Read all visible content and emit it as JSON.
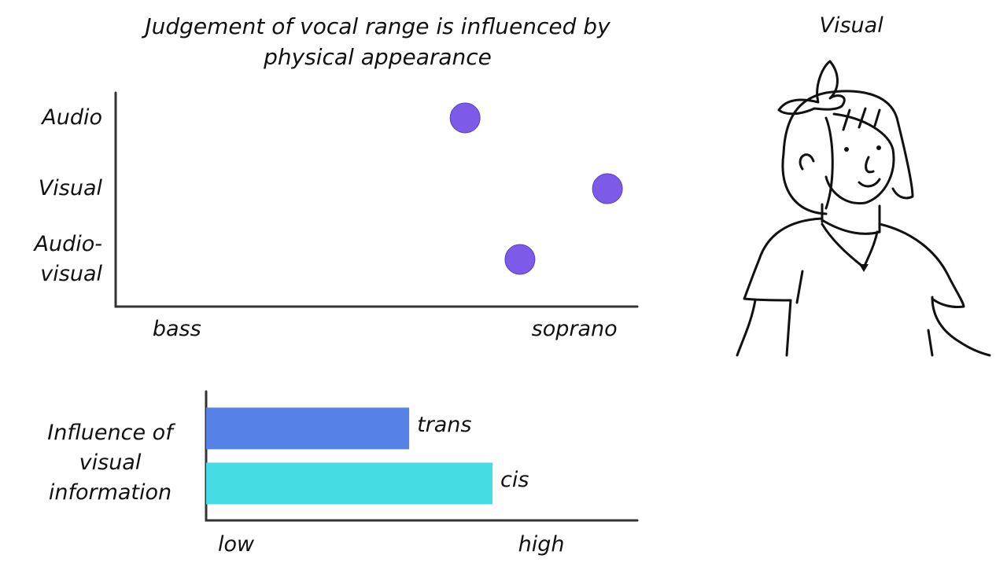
{
  "chart_data": [
    {
      "type": "dot",
      "title": "Judgement of vocal range is influenced by physical appearance",
      "categories": [
        "Audio",
        "Visual",
        "Audio-visual"
      ],
      "values": [
        72.5,
        108.3,
        86.3
      ],
      "color": "#7b5be8",
      "xlim": [
        -15.4,
        115.8
      ],
      "xticks": [
        {
          "value": 0,
          "label": "bass"
        },
        {
          "value": 100,
          "label": "soprano"
        }
      ]
    },
    {
      "type": "bar",
      "ylabel": "Influence of visual information",
      "categories": [
        "trans",
        "cis"
      ],
      "values": [
        56.7,
        84
      ],
      "colors": [
        "#5682e8",
        "#45dce4"
      ],
      "xlim": [
        -9.8,
        131.4
      ],
      "xticks": [
        {
          "value": 0,
          "label": "low"
        },
        {
          "value": 100,
          "label": "high"
        }
      ]
    }
  ],
  "illustration": {
    "caption": "Visual"
  }
}
